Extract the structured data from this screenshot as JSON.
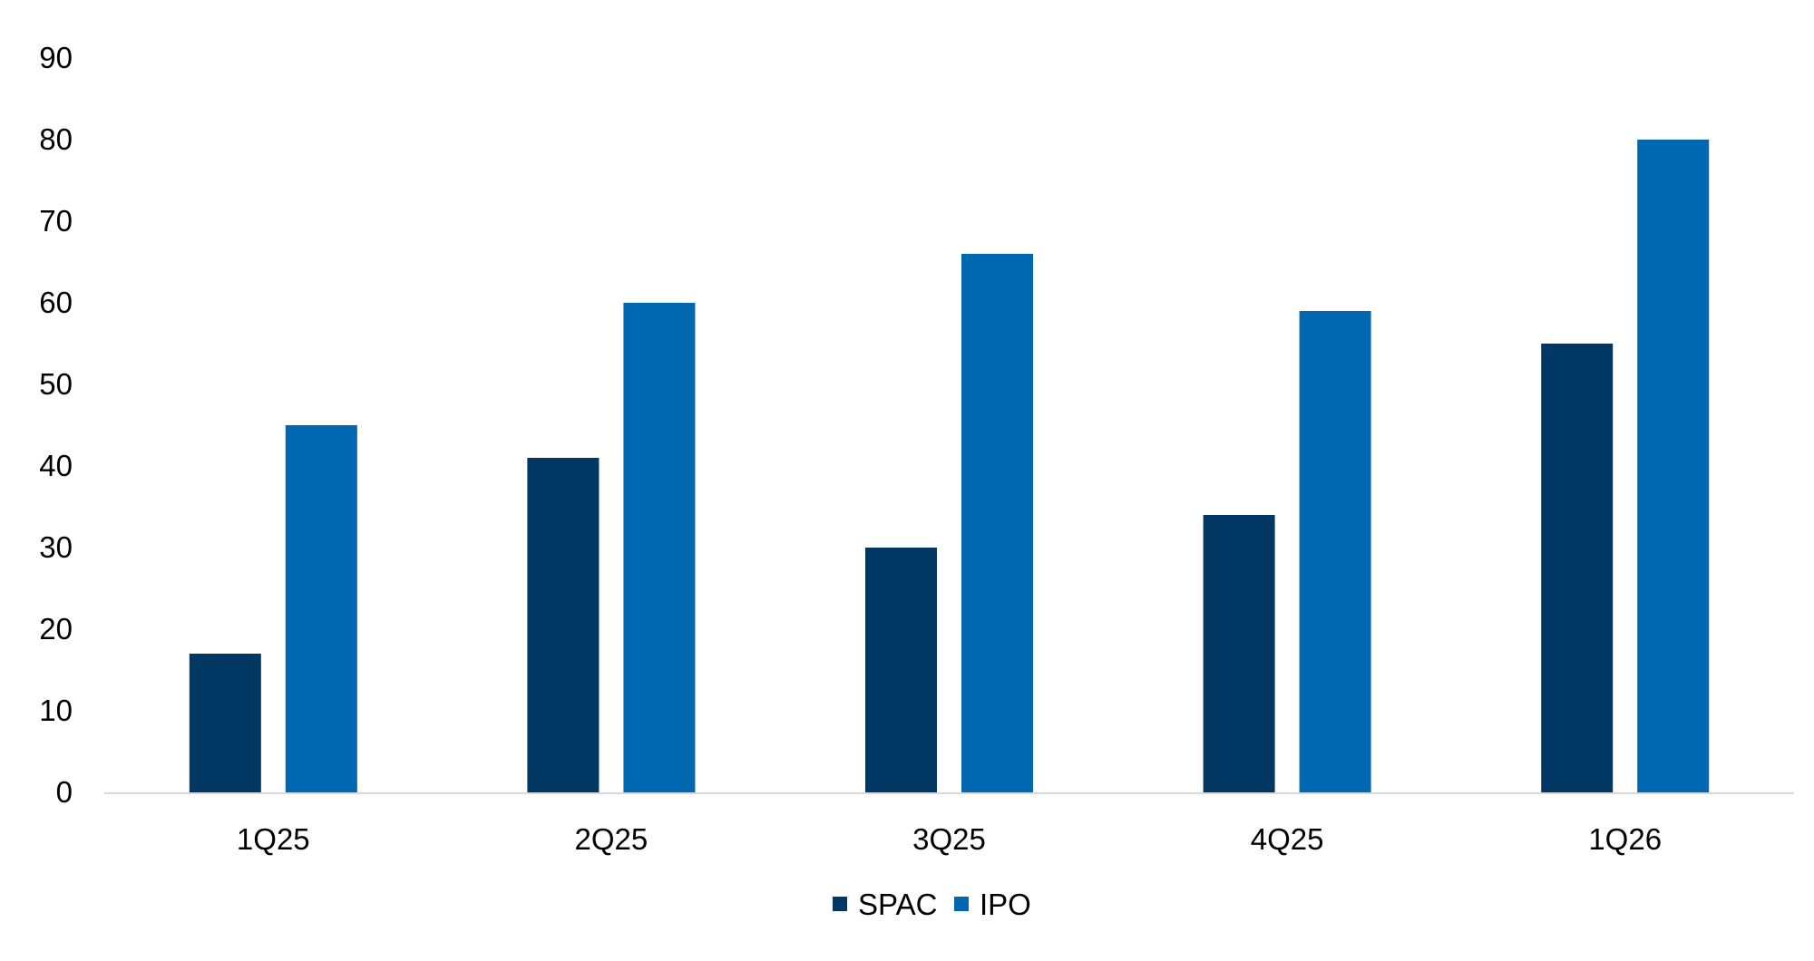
{
  "chart_data": {
    "type": "bar",
    "title": "",
    "xlabel": "",
    "ylabel": "",
    "categories": [
      "1Q25",
      "2Q25",
      "3Q25",
      "4Q25",
      "1Q26"
    ],
    "series": [
      {
        "name": "SPAC",
        "color": "#003763",
        "values": [
          17,
          41,
          30,
          34,
          55
        ]
      },
      {
        "name": "IPO",
        "color": "#0067B1",
        "values": [
          45,
          60,
          66,
          59,
          80
        ]
      }
    ],
    "ylim": [
      0,
      90
    ],
    "yticks": [
      0,
      10,
      20,
      30,
      40,
      50,
      60,
      70,
      80,
      90
    ],
    "grid": false,
    "legend_position": "bottom-center",
    "axis_color": "#D9D9D9"
  }
}
